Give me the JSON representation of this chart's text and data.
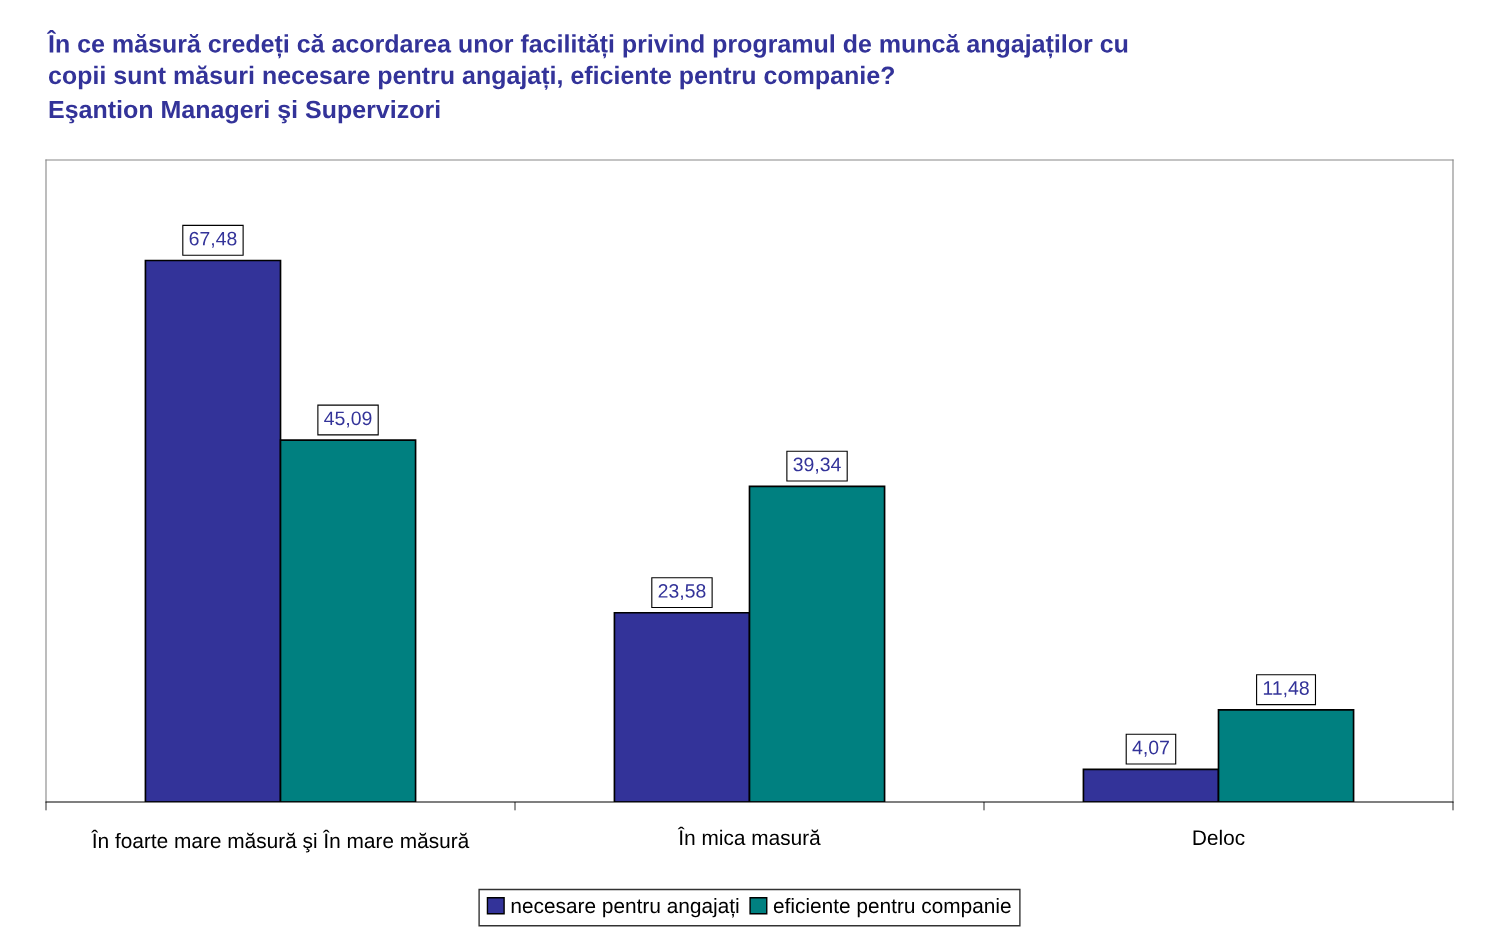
{
  "chart_data": {
    "type": "bar",
    "title": "În ce măsură credeți că acordarea unor facilități privind programul de muncă angajaților cu\ncopii sunt măsuri necesare pentru angajați, eficiente pentru companie?",
    "subtitle": "Eşantion Manageri şi Supervizori",
    "categories": [
      "În foarte mare măsură şi În mare măsură",
      "În mica masură",
      "Deloc"
    ],
    "series": [
      {
        "name": "necesare pentru angajați",
        "color": "#333399",
        "values": [
          67.48,
          23.58,
          4.07
        ],
        "value_labels": [
          "67,48",
          "23,58",
          "4,07"
        ]
      },
      {
        "name": "eficiente pentru companie",
        "color": "#008080",
        "values": [
          45.09,
          39.34,
          11.48
        ],
        "value_labels": [
          "45,09",
          "39,34",
          "11,48"
        ]
      }
    ],
    "ylim": [
      0,
      80
    ],
    "tick_labels": "x",
    "grid": false,
    "legend": "bottom"
  }
}
